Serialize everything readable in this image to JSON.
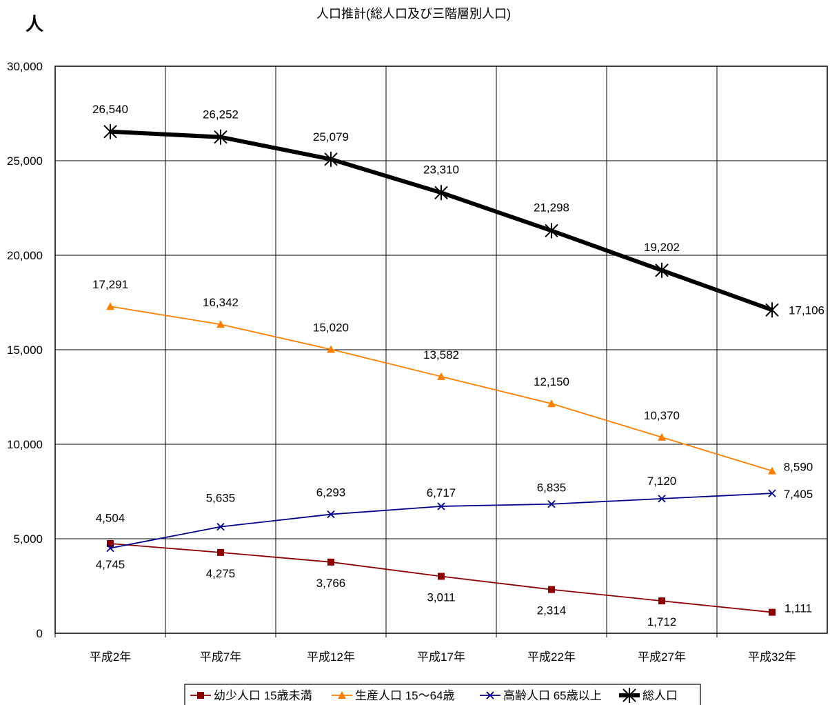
{
  "chart_data": {
    "type": "line",
    "title": "人口推計(総人口及び三階層別人口)",
    "unit_label": "人",
    "categories": [
      "平成2年",
      "平成7年",
      "平成12年",
      "平成17年",
      "平成22年",
      "平成27年",
      "平成32年"
    ],
    "ylim": [
      0,
      30000
    ],
    "yticks": [
      0,
      5000,
      10000,
      15000,
      20000,
      25000,
      30000
    ],
    "ytick_labels": [
      "0",
      "5,000",
      "10,000",
      "15,000",
      "20,000",
      "25,000",
      "30,000"
    ],
    "grid": true,
    "legend_position": "bottom",
    "series": [
      {
        "name": "幼少人口 15歳未満",
        "marker": "square",
        "color": "#8b0000",
        "values": [
          4745,
          4275,
          3766,
          3011,
          2314,
          1712,
          1111
        ],
        "labels": [
          "4,745",
          "4,275",
          "3,766",
          "3,011",
          "2,314",
          "1,712",
          "1,111"
        ]
      },
      {
        "name": "生産人口 15～64歳",
        "marker": "triangle",
        "color": "#ff7f00",
        "values": [
          17291,
          16342,
          15020,
          13582,
          12150,
          10370,
          8590
        ],
        "labels": [
          "17,291",
          "16,342",
          "15,020",
          "13,582",
          "12,150",
          "10,370",
          "8,590"
        ]
      },
      {
        "name": "高齢人口 65歳以上",
        "marker": "x",
        "color": "#00008b",
        "values": [
          4504,
          5635,
          6293,
          6717,
          6835,
          7120,
          7405
        ],
        "labels": [
          "4,504",
          "5,635",
          "6,293",
          "6,717",
          "6,835",
          "7,120",
          "7,405"
        ]
      },
      {
        "name": "総人口",
        "marker": "star",
        "color": "#000000",
        "values": [
          26540,
          26252,
          25079,
          23310,
          21298,
          19202,
          17106
        ],
        "labels": [
          "26,540",
          "26,252",
          "25,079",
          "23,310",
          "21,298",
          "19,202",
          "17,106"
        ]
      }
    ]
  }
}
